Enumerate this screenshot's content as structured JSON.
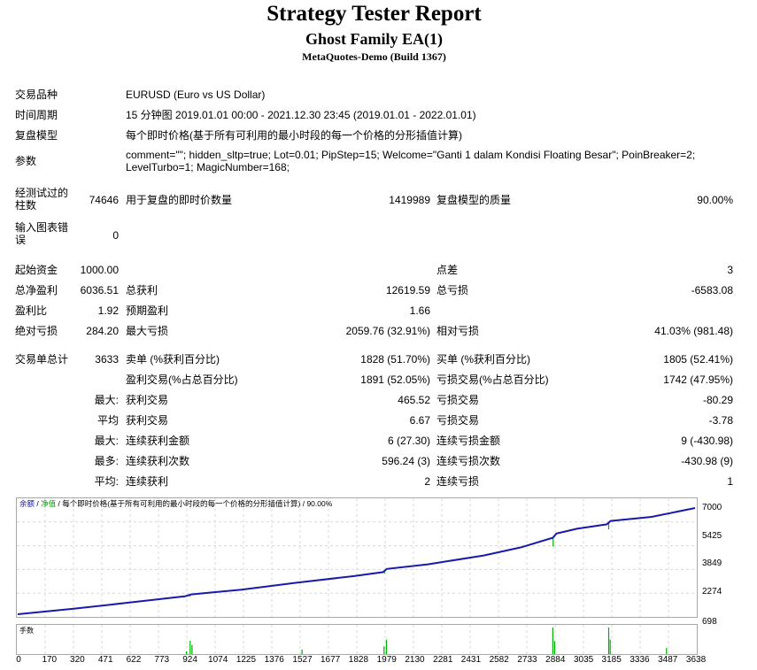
{
  "header": {
    "title": "Strategy Tester Report",
    "subtitle": "Ghost Family EA(1)",
    "build": "MetaQuotes-Demo (Build 1367)"
  },
  "info": {
    "symbol_label": "交易品种",
    "symbol": "EURUSD (Euro vs US Dollar)",
    "period_label": "时间周期",
    "period": "15 分钟图 2019.01.01 00:00 - 2021.12.30 23:45 (2019.01.01 - 2022.01.01)",
    "model_label": "复盘模型",
    "model": "每个即时价格(基于所有可利用的最小时段的每一个价格的分形插值计算)",
    "params_label": "参数",
    "params": "comment=\"\"; hidden_sltp=true; Lot=0.01; PipStep=15; Welcome=\"Ganti 1 dalam Kondisi Floating Besar\"; PoinBreaker=2; LevelTurbo=1; MagicNumber=168;"
  },
  "stats": {
    "bars_label": "经测试过的柱数",
    "bars": "74646",
    "ticks_label": "用于复盘的即时价数量",
    "ticks": "1419989",
    "quality_label": "复盘模型的质量",
    "quality": "90.00%",
    "errors_label": "输入图表错误",
    "errors": "0",
    "deposit_label": "起始资金",
    "deposit": "1000.00",
    "spread_label": "点差",
    "spread": "3",
    "net_label": "总净盈利",
    "net": "6036.51",
    "gross_profit_label": "总获利",
    "gross_profit": "12619.59",
    "gross_loss_label": "总亏损",
    "gross_loss": "-6583.08",
    "pf_label": "盈利比",
    "pf": "1.92",
    "payoff_label": "预期盈利",
    "payoff": "1.66",
    "abs_dd_label": "绝对亏损",
    "abs_dd": "284.20",
    "max_dd_label": "最大亏损",
    "max_dd": "2059.76 (32.91%)",
    "rel_dd_label": "相对亏损",
    "rel_dd": "41.03% (981.48)",
    "total_trades_label": "交易单总计",
    "total_trades": "3633",
    "short_label": "卖单 (%获利百分比)",
    "short": "1828 (51.70%)",
    "long_label": "买单 (%获利百分比)",
    "long": "1805 (52.41%)",
    "profit_trades_label": "盈利交易(%占总百分比)",
    "profit_trades": "1891 (52.05%)",
    "loss_trades_label": "亏损交易(%占总百分比)",
    "loss_trades": "1742 (47.95%)",
    "max_prefix": "最大:",
    "avg_prefix": "平均",
    "max2_prefix": "最大:",
    "most_prefix": "最多:",
    "avg2_prefix": "平均:",
    "largest_profit_label": "获利交易",
    "largest_profit": "465.52",
    "largest_loss_label": "亏损交易",
    "largest_loss": "-80.29",
    "avg_profit_label": "获利交易",
    "avg_profit": "6.67",
    "avg_loss_label": "亏损交易",
    "avg_loss": "-3.78",
    "max_cons_wins_label": "连续获利金额",
    "max_cons_wins": "6 (27.30)",
    "max_cons_losses_label": "连续亏损金额",
    "max_cons_losses": "9 (-430.98)",
    "max_cons_profit_label": "连续获利次数",
    "max_cons_profit": "596.24 (3)",
    "max_cons_loss_label": "连续亏损次数",
    "max_cons_loss": "-430.98 (9)",
    "avg_cons_wins_label": "连续获利",
    "avg_cons_wins": "2",
    "avg_cons_losses_label": "连续亏损",
    "avg_cons_losses": "1"
  },
  "chart": {
    "legend_balance": "余额",
    "legend_sep1": " / ",
    "legend_equity": "净值",
    "legend_rest": " / 每个即时价格(基于所有可利用的最小时段的每一个价格的分形插值计算) / 90.00%",
    "balance_color": "#1a1aa8",
    "equity_color": "#00b000",
    "grid_color": "#d8d8d8",
    "hist_label": "手数",
    "hist_max": "698"
  },
  "chart_data": {
    "type": "line",
    "ylim": [
      1000,
      7000
    ],
    "y_ticks": [
      "7000",
      "5425",
      "3849",
      "2274"
    ],
    "x_ticks": [
      "0",
      "170",
      "320",
      "471",
      "622",
      "773",
      "924",
      "1074",
      "1225",
      "1376",
      "1527",
      "1677",
      "1828",
      "1979",
      "2130",
      "2281",
      "2431",
      "2582",
      "2733",
      "2884",
      "3035",
      "3185",
      "3336",
      "3487",
      "3638"
    ],
    "xlim": [
      0,
      3633
    ],
    "series": [
      {
        "name": "余额",
        "x": [
          0,
          300,
          600,
          900,
          930,
          1200,
          1500,
          1800,
          1960,
          1980,
          2200,
          2500,
          2700,
          2870,
          2890,
          3000,
          3160,
          3180,
          3400,
          3633
        ],
        "y": [
          1000,
          1310,
          1660,
          2020,
          2120,
          2390,
          2790,
          3150,
          3380,
          3560,
          3820,
          4320,
          4780,
          5320,
          5560,
          5830,
          6080,
          6270,
          6500,
          7000
        ]
      }
    ],
    "lots": {
      "x": [
        905,
        925,
        935,
        1525,
        1965,
        1978,
        2870,
        2880,
        3170,
        3178,
        3480
      ],
      "y": [
        70,
        350,
        240,
        120,
        200,
        380,
        698,
        340,
        698,
        380,
        160
      ]
    }
  }
}
